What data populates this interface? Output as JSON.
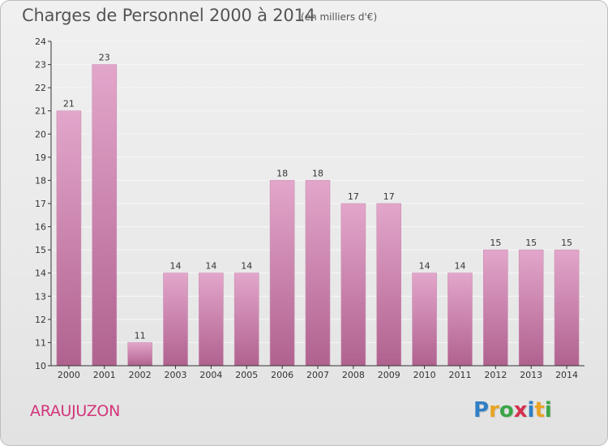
{
  "header": {
    "title": "Charges de Personnel 2000 à 2014",
    "subtitle": "(en milliers d'€)"
  },
  "commune": "ARAUJUZON",
  "logo": {
    "text": "Proxiti",
    "letter_colors": [
      "#2f7fc4",
      "#e8a422",
      "#3aa548",
      "#d6304f",
      "#2f7fc4",
      "#e8a422",
      "#3aa548"
    ]
  },
  "colors": {
    "bar_top": "#e3a6cb",
    "bar_bottom": "#b0628f",
    "axis": "#333333",
    "grid": "#f7f7f7",
    "label": "#333333"
  },
  "chart_data": {
    "type": "bar",
    "title": "Charges de Personnel 2000 à 2014",
    "subtitle": "(en milliers d'€)",
    "xlabel": "",
    "ylabel": "",
    "categories": [
      "2000",
      "2001",
      "2002",
      "2003",
      "2004",
      "2005",
      "2006",
      "2007",
      "2008",
      "2009",
      "2010",
      "2011",
      "2012",
      "2013",
      "2014"
    ],
    "values": [
      21,
      23,
      11,
      14,
      14,
      14,
      18,
      18,
      17,
      17,
      14,
      14,
      15,
      15,
      15
    ],
    "ylim": [
      10,
      24
    ],
    "yticks": [
      10,
      11,
      12,
      13,
      14,
      15,
      16,
      17,
      18,
      19,
      20,
      21,
      22,
      23,
      24
    ],
    "grid": true,
    "data_labels": true
  }
}
